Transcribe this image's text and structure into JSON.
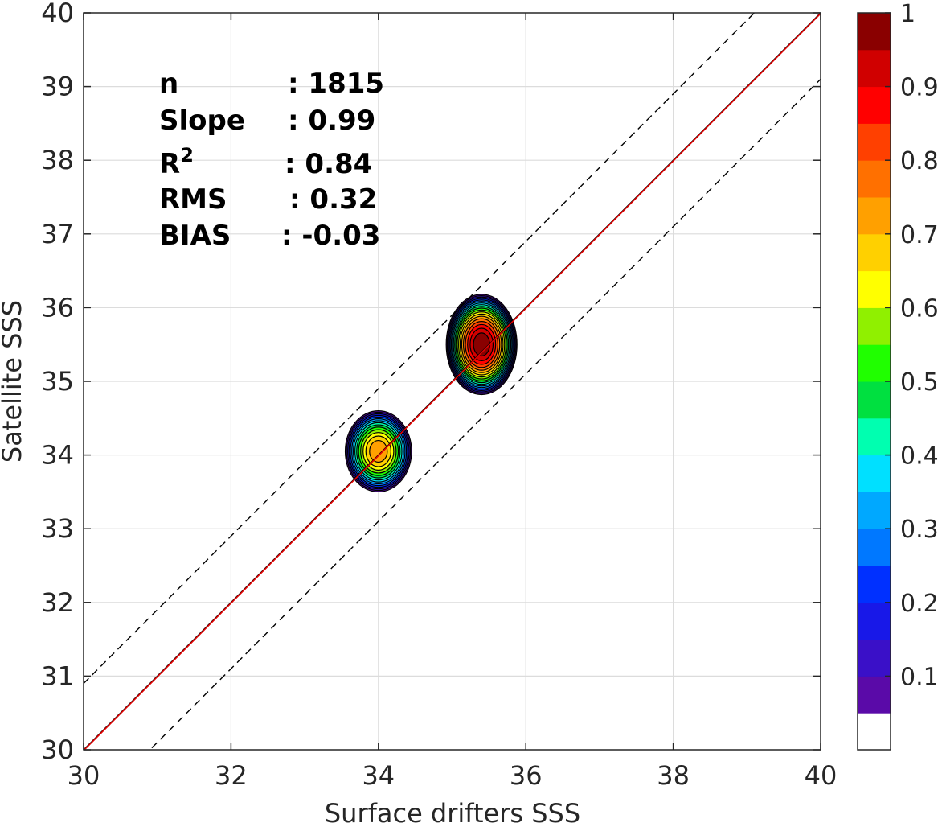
{
  "chart_data": {
    "type": "contour-scatter",
    "xlabel": "Surface drifters SSS",
    "ylabel": "Satellite SSS",
    "xlim": [
      30,
      40
    ],
    "ylim": [
      30,
      40
    ],
    "xticks": [
      "30",
      "32",
      "34",
      "36",
      "38",
      "40"
    ],
    "yticks": [
      "30",
      "31",
      "32",
      "33",
      "34",
      "35",
      "36",
      "37",
      "38",
      "39",
      "40"
    ],
    "grid": true,
    "stats": [
      {
        "label": "n",
        "sep": ":",
        "value": "1815"
      },
      {
        "label": "Slope",
        "sep": ":",
        "value": "0.99"
      },
      {
        "label": "R",
        "sup": "2",
        "sep": ":",
        "value": "0.84"
      },
      {
        "label": "RMS",
        "sep": ":",
        "value": "0.32"
      },
      {
        "label": "BIAS",
        "sep": ":",
        "value": "-0.03"
      }
    ],
    "lines": {
      "identity": {
        "x": [
          30,
          40
        ],
        "y": [
          30,
          40
        ],
        "color": "#000000",
        "style": "solid"
      },
      "fit": {
        "x": [
          30,
          40
        ],
        "y": [
          29.99,
          39.99
        ],
        "color": "#e00000",
        "style": "solid"
      },
      "upper_bound": {
        "offset": 0.9,
        "color": "#000000",
        "style": "dashed"
      },
      "lower_bound": {
        "offset": -0.9,
        "color": "#000000",
        "style": "dashed"
      }
    },
    "density_clusters": [
      {
        "center": [
          35.4,
          35.5
        ],
        "radius": [
          0.48,
          0.68
        ],
        "peak": 1.0
      },
      {
        "center": [
          34.0,
          34.05
        ],
        "radius": [
          0.45,
          0.55
        ],
        "peak": 0.75
      }
    ],
    "colorbar": {
      "ticks": [
        "0.1",
        "0.2",
        "0.3",
        "0.4",
        "0.5",
        "0.6",
        "0.7",
        "0.8",
        "0.9",
        "1"
      ],
      "range": [
        0,
        1
      ],
      "levels": [
        "#ffffff",
        "#5a0aa8",
        "#3a10c8",
        "#1818e8",
        "#0030ff",
        "#0078ff",
        "#00a8ff",
        "#00e0ff",
        "#00ffb0",
        "#00e040",
        "#20ff00",
        "#90f000",
        "#ffff00",
        "#ffd000",
        "#ffa000",
        "#ff7000",
        "#ff4000",
        "#ff0000",
        "#d00000",
        "#8a0000"
      ]
    }
  }
}
